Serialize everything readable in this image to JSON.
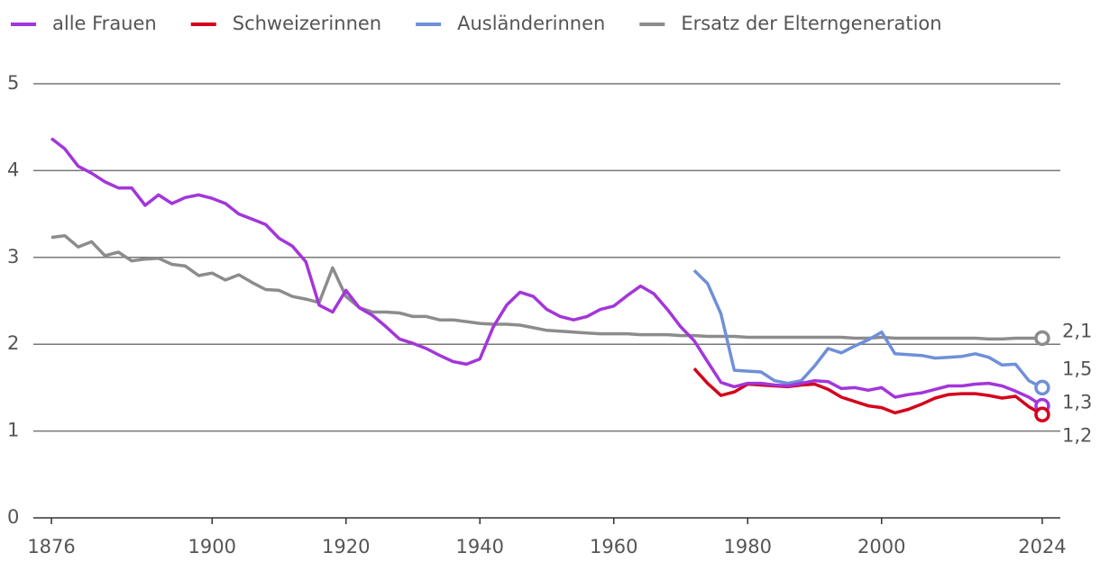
{
  "chart_data": {
    "type": "line",
    "x": [
      1876,
      1878,
      1880,
      1882,
      1884,
      1886,
      1888,
      1890,
      1892,
      1894,
      1896,
      1898,
      1900,
      1902,
      1904,
      1906,
      1908,
      1910,
      1912,
      1914,
      1916,
      1918,
      1920,
      1922,
      1924,
      1926,
      1928,
      1930,
      1932,
      1934,
      1936,
      1938,
      1940,
      1942,
      1944,
      1946,
      1948,
      1950,
      1952,
      1954,
      1956,
      1958,
      1960,
      1962,
      1964,
      1966,
      1968,
      1970,
      1972,
      1974,
      1976,
      1978,
      1980,
      1982,
      1984,
      1986,
      1988,
      1990,
      1992,
      1994,
      1996,
      1998,
      2000,
      2002,
      2004,
      2006,
      2008,
      2010,
      2012,
      2014,
      2016,
      2018,
      2020,
      2022,
      2024
    ],
    "series": [
      {
        "name": "alle Frauen",
        "color": "#a336d9",
        "values": [
          4.37,
          4.25,
          4.05,
          3.97,
          3.87,
          3.8,
          3.8,
          3.6,
          3.72,
          3.62,
          3.69,
          3.72,
          3.68,
          3.62,
          3.5,
          3.44,
          3.38,
          3.22,
          3.13,
          2.95,
          2.45,
          2.37,
          2.62,
          2.42,
          2.33,
          2.2,
          2.06,
          2.01,
          1.95,
          1.87,
          1.8,
          1.77,
          1.83,
          2.2,
          2.45,
          2.6,
          2.55,
          2.4,
          2.32,
          2.28,
          2.32,
          2.4,
          2.44,
          2.56,
          2.67,
          2.58,
          2.4,
          2.2,
          2.04,
          1.8,
          1.56,
          1.51,
          1.55,
          1.55,
          1.53,
          1.52,
          1.55,
          1.58,
          1.57,
          1.49,
          1.5,
          1.47,
          1.5,
          1.39,
          1.42,
          1.44,
          1.48,
          1.52,
          1.52,
          1.54,
          1.55,
          1.52,
          1.46,
          1.39,
          1.29
        ],
        "value_labels": [
          null,
          null,
          null,
          null,
          null,
          null,
          null,
          null,
          null,
          null,
          null,
          null,
          null,
          null,
          null,
          null,
          null,
          null,
          null,
          null,
          null,
          null,
          null,
          null,
          null,
          null,
          null,
          null,
          null,
          null,
          null,
          null,
          null,
          null,
          null,
          null,
          null,
          null,
          null,
          null,
          null,
          null,
          null,
          null,
          null,
          null,
          null,
          null,
          null,
          null,
          null,
          null,
          null,
          null,
          null,
          null,
          null,
          null,
          null,
          null,
          null,
          null,
          null,
          null,
          null,
          null,
          null,
          null,
          null,
          null,
          null,
          null,
          null,
          null,
          "1,3"
        ]
      },
      {
        "name": "Schweizerinnen",
        "color": "#d5001c",
        "values": [
          null,
          null,
          null,
          null,
          null,
          null,
          null,
          null,
          null,
          null,
          null,
          null,
          null,
          null,
          null,
          null,
          null,
          null,
          null,
          null,
          null,
          null,
          null,
          null,
          null,
          null,
          null,
          null,
          null,
          null,
          null,
          null,
          null,
          null,
          null,
          null,
          null,
          null,
          null,
          null,
          null,
          null,
          null,
          null,
          null,
          null,
          null,
          null,
          1.72,
          1.55,
          1.41,
          1.45,
          1.54,
          1.53,
          1.52,
          1.51,
          1.53,
          1.54,
          1.48,
          1.39,
          1.34,
          1.29,
          1.27,
          1.21,
          1.25,
          1.31,
          1.38,
          1.42,
          1.43,
          1.43,
          1.41,
          1.38,
          1.4,
          1.28,
          1.19
        ],
        "value_labels": [
          null,
          null,
          null,
          null,
          null,
          null,
          null,
          null,
          null,
          null,
          null,
          null,
          null,
          null,
          null,
          null,
          null,
          null,
          null,
          null,
          null,
          null,
          null,
          null,
          null,
          null,
          null,
          null,
          null,
          null,
          null,
          null,
          null,
          null,
          null,
          null,
          null,
          null,
          null,
          null,
          null,
          null,
          null,
          null,
          null,
          null,
          null,
          null,
          null,
          null,
          null,
          null,
          null,
          null,
          null,
          null,
          null,
          null,
          null,
          null,
          null,
          null,
          null,
          null,
          null,
          null,
          null,
          null,
          null,
          null,
          null,
          null,
          null,
          null,
          "1,2"
        ]
      },
      {
        "name": "Ausländerinnen",
        "color": "#6f8fd9",
        "values": [
          null,
          null,
          null,
          null,
          null,
          null,
          null,
          null,
          null,
          null,
          null,
          null,
          null,
          null,
          null,
          null,
          null,
          null,
          null,
          null,
          null,
          null,
          null,
          null,
          null,
          null,
          null,
          null,
          null,
          null,
          null,
          null,
          null,
          null,
          null,
          null,
          null,
          null,
          null,
          null,
          null,
          null,
          null,
          null,
          null,
          null,
          null,
          null,
          2.85,
          2.7,
          2.35,
          1.7,
          1.69,
          1.68,
          1.58,
          1.55,
          1.58,
          1.75,
          1.95,
          1.9,
          1.98,
          2.05,
          2.14,
          1.89,
          1.88,
          1.87,
          1.84,
          1.85,
          1.86,
          1.89,
          1.85,
          1.76,
          1.77,
          1.58,
          1.5
        ],
        "value_labels": [
          null,
          null,
          null,
          null,
          null,
          null,
          null,
          null,
          null,
          null,
          null,
          null,
          null,
          null,
          null,
          null,
          null,
          null,
          null,
          null,
          null,
          null,
          null,
          null,
          null,
          null,
          null,
          null,
          null,
          null,
          null,
          null,
          null,
          null,
          null,
          null,
          null,
          null,
          null,
          null,
          null,
          null,
          null,
          null,
          null,
          null,
          null,
          null,
          null,
          null,
          null,
          null,
          null,
          null,
          null,
          null,
          null,
          null,
          null,
          null,
          null,
          null,
          null,
          null,
          null,
          null,
          null,
          null,
          null,
          null,
          null,
          null,
          null,
          null,
          "1,5"
        ]
      },
      {
        "name": "Ersatz der Elterngeneration",
        "color": "#8c8c8c",
        "values": [
          3.23,
          3.25,
          3.12,
          3.18,
          3.02,
          3.06,
          2.96,
          2.98,
          2.99,
          2.92,
          2.9,
          2.79,
          2.82,
          2.74,
          2.8,
          2.71,
          2.63,
          2.62,
          2.55,
          2.52,
          2.48,
          2.88,
          2.55,
          2.42,
          2.37,
          2.37,
          2.36,
          2.32,
          2.32,
          2.28,
          2.28,
          2.26,
          2.24,
          2.23,
          2.23,
          2.22,
          2.19,
          2.16,
          2.15,
          2.14,
          2.13,
          2.12,
          2.12,
          2.12,
          2.11,
          2.11,
          2.11,
          2.1,
          2.1,
          2.09,
          2.09,
          2.09,
          2.08,
          2.08,
          2.08,
          2.08,
          2.08,
          2.08,
          2.08,
          2.08,
          2.07,
          2.07,
          2.08,
          2.07,
          2.07,
          2.07,
          2.07,
          2.07,
          2.07,
          2.07,
          2.06,
          2.06,
          2.07,
          2.07,
          2.07
        ],
        "value_labels": [
          null,
          null,
          null,
          null,
          null,
          null,
          null,
          null,
          null,
          null,
          null,
          null,
          null,
          null,
          null,
          null,
          null,
          null,
          null,
          null,
          null,
          null,
          null,
          null,
          null,
          null,
          null,
          null,
          null,
          null,
          null,
          null,
          null,
          null,
          null,
          null,
          null,
          null,
          null,
          null,
          null,
          null,
          null,
          null,
          null,
          null,
          null,
          null,
          null,
          null,
          null,
          null,
          null,
          null,
          null,
          null,
          null,
          null,
          null,
          null,
          null,
          null,
          null,
          null,
          null,
          null,
          null,
          null,
          null,
          null,
          null,
          null,
          null,
          null,
          "2,1"
        ]
      }
    ],
    "xlim": [
      1873.3,
      2026.7
    ],
    "xticks": [
      1876,
      1900,
      1920,
      1940,
      1960,
      1980,
      2000,
      2024
    ],
    "ylim": [
      0,
      5
    ],
    "yticks": [
      0,
      1,
      2,
      3,
      4,
      5
    ],
    "grid": true
  }
}
